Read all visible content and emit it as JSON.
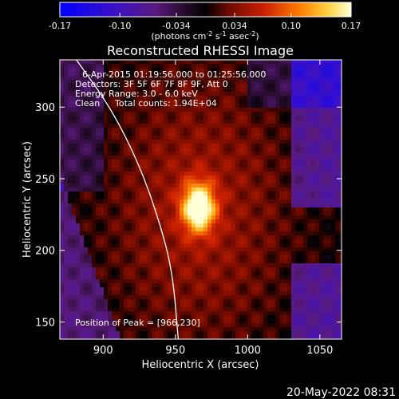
{
  "chart_data": {
    "type": "heatmap",
    "title": "Reconstructed RHESSI Image",
    "xlabel": "Heliocentric X (arcsec)",
    "ylabel": "Heliocentric Y (arcsec)",
    "xlim": [
      870,
      1065
    ],
    "ylim": [
      138,
      333
    ],
    "x_ticks": [
      "900",
      "950",
      "1000",
      "1050"
    ],
    "x_tick_values": [
      900,
      950,
      1000,
      1050
    ],
    "y_ticks": [
      "150",
      "200",
      "250",
      "300"
    ],
    "y_tick_values": [
      150,
      200,
      250,
      300
    ],
    "colorbar": {
      "min": -0.17,
      "max": 0.17,
      "tick_labels": [
        "-0.17",
        "-0.10",
        "-0.034",
        "0.034",
        "0.10",
        "0.17"
      ],
      "tick_values": [
        -0.17,
        -0.1,
        -0.034,
        0.034,
        0.1,
        0.17
      ],
      "units_label": "(photons cm",
      "units_sup1": "-2",
      "units_mid": " s",
      "units_sup2": "-1",
      "units_end": " asec",
      "units_sup3": "-2",
      "units_close": ")"
    },
    "annotations": {
      "time_range": "6-Apr-2015 01:19:56.000 to 01:25:56.000",
      "detectors": "Detectors: 3F 5F 6F 7F 8F 9F, Att 0",
      "energy": "Energy Range: 3.0 - 6.0 keV",
      "clean": "Clean",
      "counts": "Total counts: 1.94E+04",
      "peak": "Position of Peak = [966,230]"
    },
    "peak_position": [
      966,
      230
    ],
    "source_sigma_arcsec": [
      8,
      12
    ],
    "limb_curve_points": [
      [
        880,
        335
      ],
      [
        905,
        300
      ],
      [
        925,
        260
      ],
      [
        939,
        220
      ],
      [
        948,
        185
      ],
      [
        952,
        138
      ]
    ]
  },
  "footer": {
    "date": "20-May-2022 08:31"
  },
  "colors": {
    "background": "#000000",
    "text": "#ffffff",
    "limb": "#ffffff"
  }
}
